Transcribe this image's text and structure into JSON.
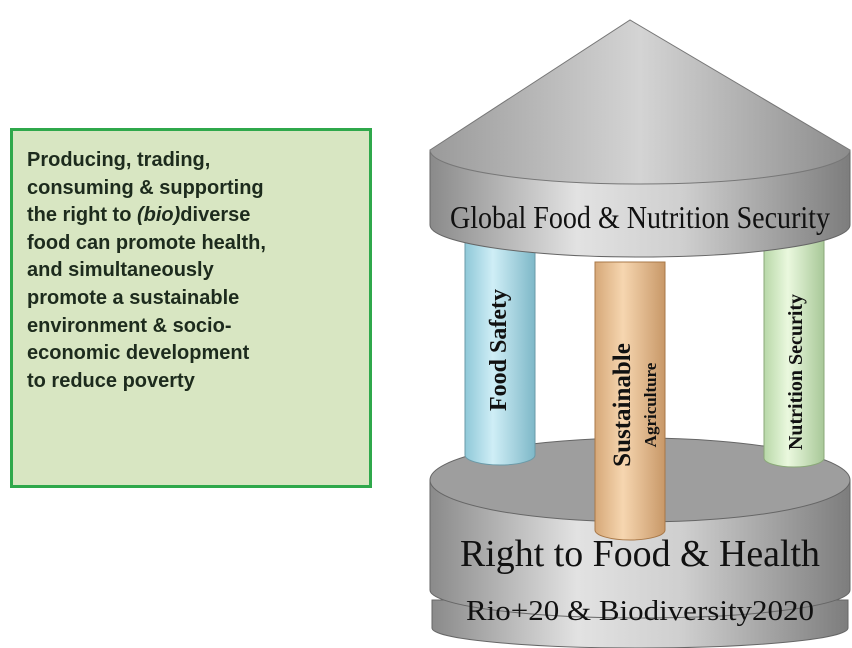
{
  "text_box": {
    "lines": [
      "Producing, trading,",
      "consuming & supporting",
      [
        "the right to ",
        "(bio)",
        "diverse"
      ],
      "food can promote health,",
      "and  simultaneously",
      "promote a sustainable",
      "environment & socio-",
      "economic development",
      "to reduce poverty"
    ]
  },
  "temple": {
    "roof": "Global Food & Nutrition Security",
    "pillars": [
      "Food Safety",
      [
        "Sustainable",
        "Agriculture"
      ],
      "Nutrition Security"
    ],
    "base_upper": "Right to Food & Health",
    "base_lower": "Rio+20 & Biodiversity2020"
  }
}
